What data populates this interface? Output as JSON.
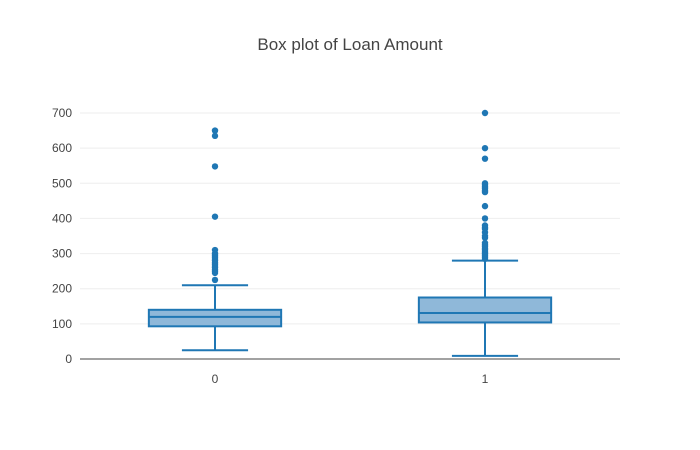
{
  "chart_data": {
    "type": "box",
    "title": "Box plot of Loan Amount",
    "xlabel": "",
    "ylabel": "",
    "categories": [
      "0",
      "1"
    ],
    "ylim": [
      0,
      700
    ],
    "yticks": [
      0,
      100,
      200,
      300,
      400,
      500,
      600,
      700
    ],
    "grid": true,
    "legend": "none",
    "color": "#1f77b4",
    "fill_color": "#8fb8d9",
    "boxes": [
      {
        "category": "0",
        "whisker_low": 25,
        "q1": 93,
        "median": 120,
        "q3": 140,
        "whisker_high": 210,
        "outliers": [
          225,
          245,
          250,
          255,
          260,
          265,
          270,
          275,
          280,
          285,
          290,
          295,
          300,
          310,
          405,
          548,
          635,
          650
        ]
      },
      {
        "category": "1",
        "whisker_low": 9,
        "q1": 104,
        "median": 131,
        "q3": 175,
        "whisker_high": 280,
        "outliers": [
          285,
          290,
          295,
          300,
          305,
          310,
          315,
          320,
          325,
          330,
          345,
          350,
          360,
          370,
          375,
          380,
          400,
          435,
          475,
          480,
          485,
          490,
          495,
          500,
          570,
          600,
          700
        ]
      }
    ]
  }
}
